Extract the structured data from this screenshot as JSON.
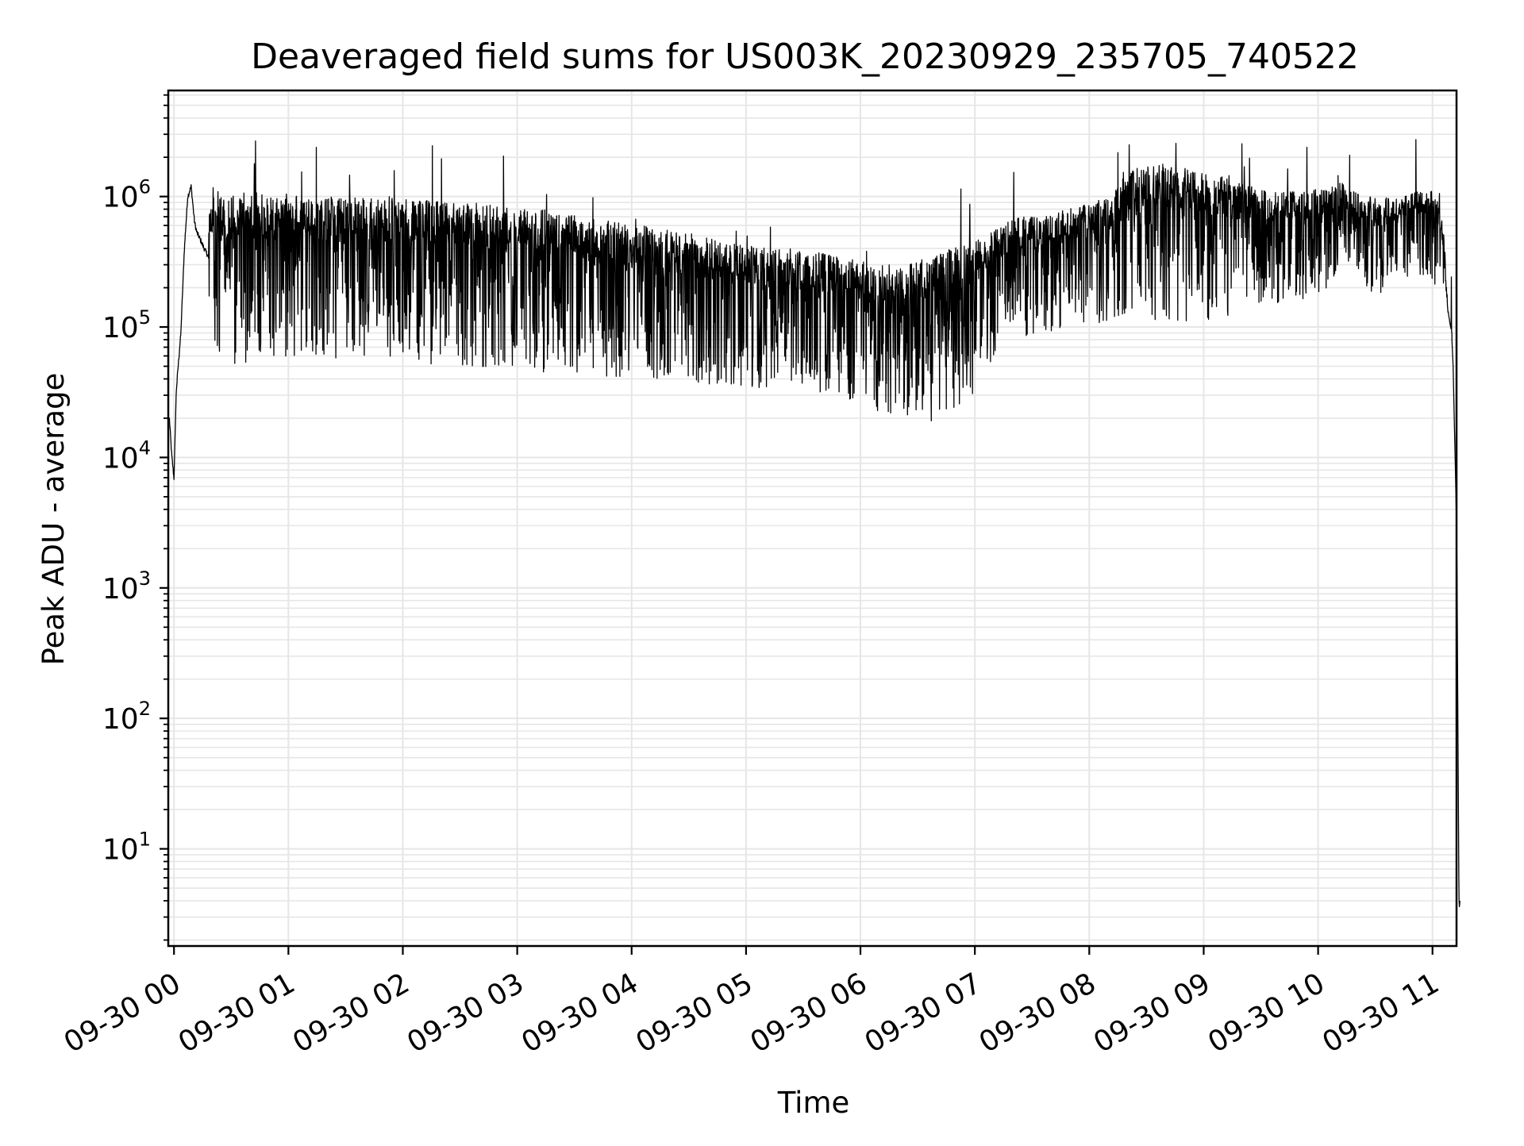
{
  "chart_data": {
    "type": "line",
    "title": "Deaveraged field sums for US003K_20230929_235705_740522",
    "xlabel": "Time",
    "ylabel": "Peak ADU - average",
    "yscale": "log",
    "grid": true,
    "line_color": "#000000",
    "grid_color": "#e6e6e6",
    "x_unit": "hours",
    "xlim": [
      -0.05,
      11.21
    ],
    "ylim": [
      1.8,
      6500000
    ],
    "x_ticks": [
      {
        "value": 0,
        "label": "09-30 00"
      },
      {
        "value": 1,
        "label": "09-30 01"
      },
      {
        "value": 2,
        "label": "09-30 02"
      },
      {
        "value": 3,
        "label": "09-30 03"
      },
      {
        "value": 4,
        "label": "09-30 04"
      },
      {
        "value": 5,
        "label": "09-30 05"
      },
      {
        "value": 6,
        "label": "09-30 06"
      },
      {
        "value": 7,
        "label": "09-30 07"
      },
      {
        "value": 8,
        "label": "09-30 08"
      },
      {
        "value": 9,
        "label": "09-30 09"
      },
      {
        "value": 10,
        "label": "09-30 10"
      },
      {
        "value": 11,
        "label": "09-30 11"
      }
    ],
    "y_ticks": [
      {
        "value": 10,
        "base": "10",
        "exp": "1"
      },
      {
        "value": 100,
        "base": "10",
        "exp": "2"
      },
      {
        "value": 1000,
        "base": "10",
        "exp": "3"
      },
      {
        "value": 10000,
        "base": "10",
        "exp": "4"
      },
      {
        "value": 100000,
        "base": "10",
        "exp": "5"
      },
      {
        "value": 1000000,
        "base": "10",
        "exp": "6"
      }
    ],
    "series": [
      {
        "x": [
          -0.04,
          -0.02,
          0.0,
          0.02,
          0.04,
          0.06,
          0.09,
          0.12,
          0.15,
          0.18,
          0.2,
          0.22,
          0.25,
          0.28,
          0.3,
          0.35,
          0.4,
          0.45,
          0.5,
          0.55,
          0.6,
          0.7,
          0.8,
          0.9,
          1.0,
          1.1,
          1.2,
          1.3,
          1.4,
          1.5,
          1.6,
          1.7,
          1.8,
          1.9,
          2.0,
          2.2,
          2.4,
          2.6,
          2.8,
          3.0,
          3.2,
          3.4,
          3.6,
          3.8,
          4.0,
          4.2,
          4.4,
          4.6,
          4.8,
          5.0,
          5.2,
          5.4,
          5.6,
          5.8,
          6.0,
          6.2,
          6.4,
          6.6,
          6.8,
          7.0,
          7.2,
          7.4,
          7.6,
          7.8,
          8.0,
          8.2,
          8.3,
          8.5,
          8.7,
          9.0,
          9.2,
          9.4,
          9.6,
          9.8,
          10.0,
          10.1,
          10.15,
          10.2,
          10.25,
          10.3,
          10.35,
          10.4,
          10.45,
          10.5,
          10.55,
          10.6,
          10.7,
          10.8,
          10.9,
          11.0,
          11.02,
          11.06,
          11.1,
          11.12,
          11.13,
          11.15,
          11.17
        ],
        "low": [
          18000,
          9000,
          6000,
          30000,
          50000,
          80000,
          300000,
          900000,
          1100000,
          500000,
          400000,
          300000,
          200000,
          140000,
          110000,
          75000,
          60000,
          55000,
          50000,
          50000,
          52000,
          55000,
          55000,
          55000,
          58000,
          60000,
          62000,
          60000,
          55000,
          56000,
          60000,
          60000,
          58000,
          55000,
          60000,
          52000,
          50000,
          48000,
          50000,
          45000,
          45000,
          45000,
          45000,
          40000,
          42000,
          40000,
          38000,
          36000,
          35000,
          30000,
          35000,
          33000,
          30000,
          28000,
          25000,
          22000,
          20000,
          18000,
          22000,
          30000,
          70000,
          80000,
          90000,
          100000,
          100000,
          110000,
          120000,
          130000,
          90000,
          110000,
          120000,
          130000,
          150000,
          160000,
          170000,
          200000,
          250000,
          250000,
          300000,
          280000,
          260000,
          220000,
          180000,
          170000,
          180000,
          200000,
          220000,
          240000,
          250000,
          230000,
          200000,
          200000,
          190000,
          160000,
          130000,
          110000,
          80000
        ],
        "high": [
          22000,
          12000,
          8000,
          35000,
          60000,
          100000,
          500000,
          1100000,
          1300000,
          800000,
          700000,
          800000,
          900000,
          1000000,
          1100000,
          1200000,
          1100000,
          1100000,
          1100000,
          1050000,
          1100000,
          1100000,
          1100000,
          1050000,
          1050000,
          1050000,
          1050000,
          1000000,
          1000000,
          1000000,
          1000000,
          1000000,
          1000000,
          1000000,
          950000,
          950000,
          900000,
          900000,
          850000,
          800000,
          800000,
          750000,
          700000,
          650000,
          600000,
          600000,
          550000,
          500000,
          450000,
          420000,
          400000,
          400000,
          380000,
          350000,
          320000,
          300000,
          300000,
          350000,
          400000,
          450000,
          600000,
          700000,
          700000,
          800000,
          900000,
          1000000,
          1600000,
          1700000,
          1800000,
          1500000,
          1400000,
          1200000,
          1100000,
          1100000,
          1200000,
          1300000,
          1300000,
          1300000,
          1200000,
          1200000,
          1100000,
          1000000,
          1000000,
          1000000,
          950000,
          1000000,
          1000000,
          1100000,
          1100000,
          1100000,
          1000000,
          900000,
          500000,
          300000,
          150000,
          110000,
          90000
        ],
        "tail_x": [
          11.17,
          11.18,
          11.19,
          11.2,
          11.21,
          11.215,
          11.22,
          11.225,
          11.23,
          11.232,
          11.235,
          11.24
        ],
        "tail_y": [
          80000,
          50000,
          20000,
          8000,
          3000,
          1200,
          200,
          30,
          6,
          4,
          3.6,
          4
        ]
      }
    ]
  }
}
